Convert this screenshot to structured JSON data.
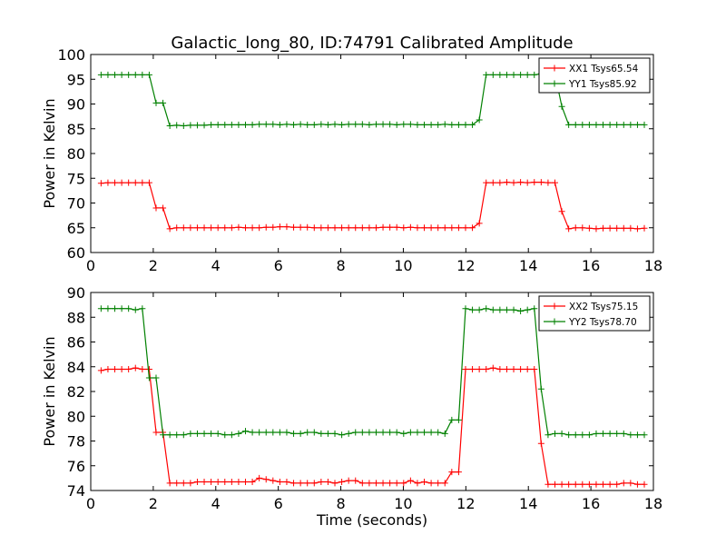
{
  "title": "Galactic_long_80, ID:74791 Calibrated Amplitude",
  "chart_data": [
    {
      "type": "line",
      "ylabel": "Power in Kelvin",
      "xlabel": "",
      "xlim": [
        0,
        18
      ],
      "ylim": [
        60,
        100
      ],
      "xticks": [
        "0",
        "2",
        "4",
        "6",
        "8",
        "10",
        "12",
        "14",
        "16",
        "18"
      ],
      "yticks": [
        "60",
        "65",
        "70",
        "75",
        "80",
        "85",
        "90",
        "95",
        "100"
      ],
      "legend_position": "top-right",
      "x": [
        0.33,
        0.55,
        0.77,
        0.99,
        1.21,
        1.43,
        1.65,
        1.87,
        2.09,
        2.31,
        2.53,
        2.75,
        2.97,
        3.19,
        3.41,
        3.63,
        3.85,
        4.07,
        4.29,
        4.51,
        4.73,
        4.95,
        5.17,
        5.39,
        5.61,
        5.83,
        6.05,
        6.27,
        6.49,
        6.71,
        6.93,
        7.15,
        7.37,
        7.59,
        7.81,
        8.03,
        8.25,
        8.47,
        8.69,
        8.91,
        9.13,
        9.35,
        9.57,
        9.79,
        10.01,
        10.23,
        10.45,
        10.67,
        10.89,
        11.11,
        11.33,
        11.55,
        11.77,
        11.99,
        12.21,
        12.43,
        12.65,
        12.87,
        13.09,
        13.31,
        13.53,
        13.75,
        13.97,
        14.19,
        14.41,
        14.63,
        14.85,
        15.07,
        15.29,
        15.51,
        15.73,
        15.95,
        16.17,
        16.39,
        16.61,
        16.83,
        17.05,
        17.27,
        17.49,
        17.71
      ],
      "series": [
        {
          "name": "XX1 Tsys65.54",
          "color": "#ff0000",
          "values": [
            74.0,
            74.1,
            74.1,
            74.1,
            74.1,
            74.1,
            74.1,
            74.1,
            69.0,
            69.0,
            64.8,
            65.0,
            65.0,
            65.0,
            65.0,
            65.0,
            65.0,
            65.0,
            65.0,
            65.0,
            65.1,
            65.0,
            65.0,
            65.0,
            65.1,
            65.1,
            65.2,
            65.2,
            65.1,
            65.1,
            65.1,
            65.0,
            65.0,
            65.0,
            65.0,
            65.0,
            65.0,
            65.0,
            65.0,
            65.0,
            65.0,
            65.1,
            65.1,
            65.1,
            65.0,
            65.1,
            65.0,
            65.0,
            65.0,
            65.0,
            65.0,
            65.0,
            65.0,
            65.0,
            65.0,
            65.9,
            74.1,
            74.1,
            74.1,
            74.2,
            74.1,
            74.2,
            74.1,
            74.2,
            74.2,
            74.1,
            74.1,
            68.3,
            64.8,
            65.0,
            65.0,
            64.9,
            64.8,
            64.9,
            64.9,
            64.9,
            64.9,
            64.9,
            64.8,
            64.9
          ]
        },
        {
          "name": "YY1 Tsys85.92",
          "color": "#008000",
          "values": [
            95.9,
            95.9,
            95.9,
            95.9,
            95.9,
            95.9,
            95.9,
            95.9,
            90.2,
            90.2,
            85.6,
            85.7,
            85.6,
            85.7,
            85.7,
            85.7,
            85.8,
            85.8,
            85.8,
            85.8,
            85.8,
            85.8,
            85.8,
            85.9,
            85.9,
            85.9,
            85.8,
            85.9,
            85.8,
            85.9,
            85.8,
            85.8,
            85.9,
            85.8,
            85.9,
            85.8,
            85.9,
            85.9,
            85.9,
            85.8,
            85.9,
            85.9,
            85.9,
            85.8,
            85.9,
            85.9,
            85.8,
            85.8,
            85.8,
            85.8,
            85.9,
            85.8,
            85.8,
            85.8,
            85.8,
            86.8,
            95.9,
            95.9,
            95.9,
            95.9,
            95.9,
            95.9,
            95.9,
            95.9,
            96.1,
            96.0,
            96.1,
            89.5,
            85.8,
            85.8,
            85.8,
            85.8,
            85.8,
            85.8,
            85.8,
            85.8,
            85.8,
            85.8,
            85.8,
            85.8
          ]
        }
      ]
    },
    {
      "type": "line",
      "ylabel": "Power in Kelvin",
      "xlabel": "Time (seconds)",
      "xlim": [
        0,
        18
      ],
      "ylim": [
        74,
        90
      ],
      "xticks": [
        "0",
        "2",
        "4",
        "6",
        "8",
        "10",
        "12",
        "14",
        "16",
        "18"
      ],
      "yticks": [
        "74",
        "76",
        "78",
        "80",
        "82",
        "84",
        "86",
        "88",
        "90"
      ],
      "legend_position": "top-right",
      "x": [
        0.33,
        0.55,
        0.77,
        0.99,
        1.21,
        1.43,
        1.65,
        1.87,
        2.09,
        2.31,
        2.53,
        2.75,
        2.97,
        3.19,
        3.41,
        3.63,
        3.85,
        4.07,
        4.29,
        4.51,
        4.73,
        4.95,
        5.17,
        5.39,
        5.61,
        5.83,
        6.05,
        6.27,
        6.49,
        6.71,
        6.93,
        7.15,
        7.37,
        7.59,
        7.81,
        8.03,
        8.25,
        8.47,
        8.69,
        8.91,
        9.13,
        9.35,
        9.57,
        9.79,
        10.01,
        10.23,
        10.45,
        10.67,
        10.89,
        11.11,
        11.33,
        11.55,
        11.77,
        11.99,
        12.21,
        12.43,
        12.65,
        12.87,
        13.09,
        13.31,
        13.53,
        13.75,
        13.97,
        14.19,
        14.41,
        14.63,
        14.85,
        15.07,
        15.29,
        15.51,
        15.73,
        15.95,
        16.17,
        16.39,
        16.61,
        16.83,
        17.05,
        17.27,
        17.49,
        17.71
      ],
      "series": [
        {
          "name": "XX2 Tsys75.15",
          "color": "#ff0000",
          "values": [
            83.7,
            83.8,
            83.8,
            83.8,
            83.8,
            83.9,
            83.8,
            83.8,
            78.7,
            78.7,
            74.6,
            74.6,
            74.6,
            74.6,
            74.7,
            74.7,
            74.7,
            74.7,
            74.7,
            74.7,
            74.7,
            74.7,
            74.7,
            75.0,
            74.9,
            74.8,
            74.7,
            74.7,
            74.6,
            74.6,
            74.6,
            74.6,
            74.7,
            74.7,
            74.6,
            74.7,
            74.8,
            74.8,
            74.6,
            74.6,
            74.6,
            74.6,
            74.6,
            74.6,
            74.6,
            74.8,
            74.6,
            74.7,
            74.6,
            74.6,
            74.6,
            75.5,
            75.5,
            83.8,
            83.8,
            83.8,
            83.8,
            83.9,
            83.8,
            83.8,
            83.8,
            83.8,
            83.8,
            83.8,
            77.8,
            74.5,
            74.5,
            74.5,
            74.5,
            74.5,
            74.5,
            74.5,
            74.5,
            74.5,
            74.5,
            74.5,
            74.6,
            74.6,
            74.5,
            74.5
          ]
        },
        {
          "name": "YY2 Tsys78.70",
          "color": "#008000",
          "values": [
            88.7,
            88.7,
            88.7,
            88.7,
            88.7,
            88.6,
            88.7,
            83.1,
            83.1,
            78.5,
            78.5,
            78.5,
            78.5,
            78.6,
            78.6,
            78.6,
            78.6,
            78.6,
            78.5,
            78.5,
            78.6,
            78.8,
            78.7,
            78.7,
            78.7,
            78.7,
            78.7,
            78.7,
            78.6,
            78.6,
            78.7,
            78.7,
            78.6,
            78.6,
            78.6,
            78.5,
            78.6,
            78.7,
            78.7,
            78.7,
            78.7,
            78.7,
            78.7,
            78.7,
            78.6,
            78.7,
            78.7,
            78.7,
            78.7,
            78.7,
            78.6,
            79.7,
            79.7,
            88.7,
            88.6,
            88.6,
            88.7,
            88.6,
            88.6,
            88.6,
            88.6,
            88.5,
            88.6,
            88.7,
            82.2,
            78.5,
            78.6,
            78.6,
            78.5,
            78.5,
            78.5,
            78.5,
            78.6,
            78.6,
            78.6,
            78.6,
            78.6,
            78.5,
            78.5,
            78.5
          ]
        }
      ]
    }
  ]
}
